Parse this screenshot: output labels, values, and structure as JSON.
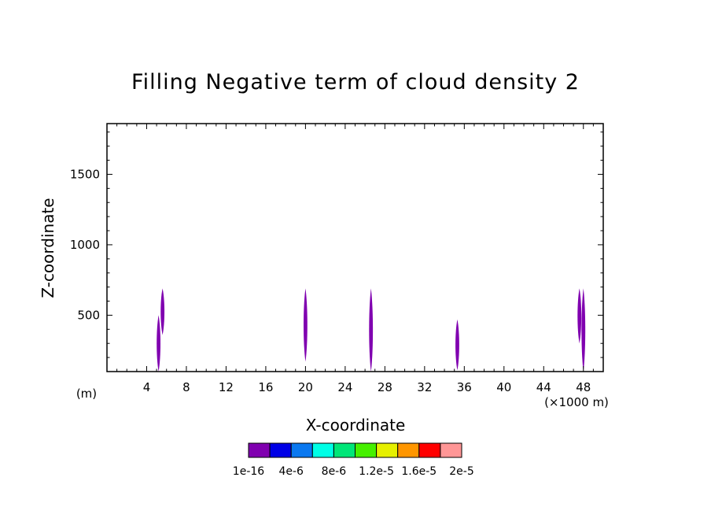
{
  "chart_data": {
    "type": "heatmap",
    "title": "Filling Negative term of cloud density 2",
    "xlabel": "X-coordinate",
    "ylabel": "Z-coordinate",
    "x_unit_label": "(m)",
    "x_scale_label": "(×1000 m)",
    "xlim": [
      0,
      50
    ],
    "ylim": [
      100,
      1860
    ],
    "x_ticks": [
      "4",
      "8",
      "12",
      "16",
      "20",
      "24",
      "28",
      "32",
      "36",
      "40",
      "44",
      "48"
    ],
    "x_tick_values": [
      4,
      8,
      12,
      16,
      20,
      24,
      28,
      32,
      36,
      40,
      44,
      48
    ],
    "y_ticks": [
      "500",
      "1000",
      "1500"
    ],
    "y_tick_values": [
      500,
      1000,
      1500
    ],
    "features": [
      {
        "x": 5.2,
        "z_min": 100,
        "z_max": 500,
        "value": 1e-16
      },
      {
        "x": 5.6,
        "z_min": 360,
        "z_max": 690,
        "value": 1e-16
      },
      {
        "x": 20.0,
        "z_min": 170,
        "z_max": 690,
        "value": 1e-16
      },
      {
        "x": 26.6,
        "z_min": 100,
        "z_max": 690,
        "value": 1e-16
      },
      {
        "x": 35.3,
        "z_min": 110,
        "z_max": 470,
        "value": 1e-16
      },
      {
        "x": 47.6,
        "z_min": 300,
        "z_max": 690,
        "value": 1e-16
      },
      {
        "x": 48.0,
        "z_min": 100,
        "z_max": 690,
        "value": 1e-16
      }
    ],
    "colorbar": {
      "colors": [
        "#8000b0",
        "#0000e6",
        "#0a78f0",
        "#00ffe6",
        "#00e678",
        "#46f000",
        "#e6f000",
        "#ff9600",
        "#ff0000",
        "#ff9696"
      ],
      "labels": [
        "1e-16",
        "4e-6",
        "8e-6",
        "1.2e-5",
        "1.6e-5",
        "2e-5"
      ]
    }
  }
}
